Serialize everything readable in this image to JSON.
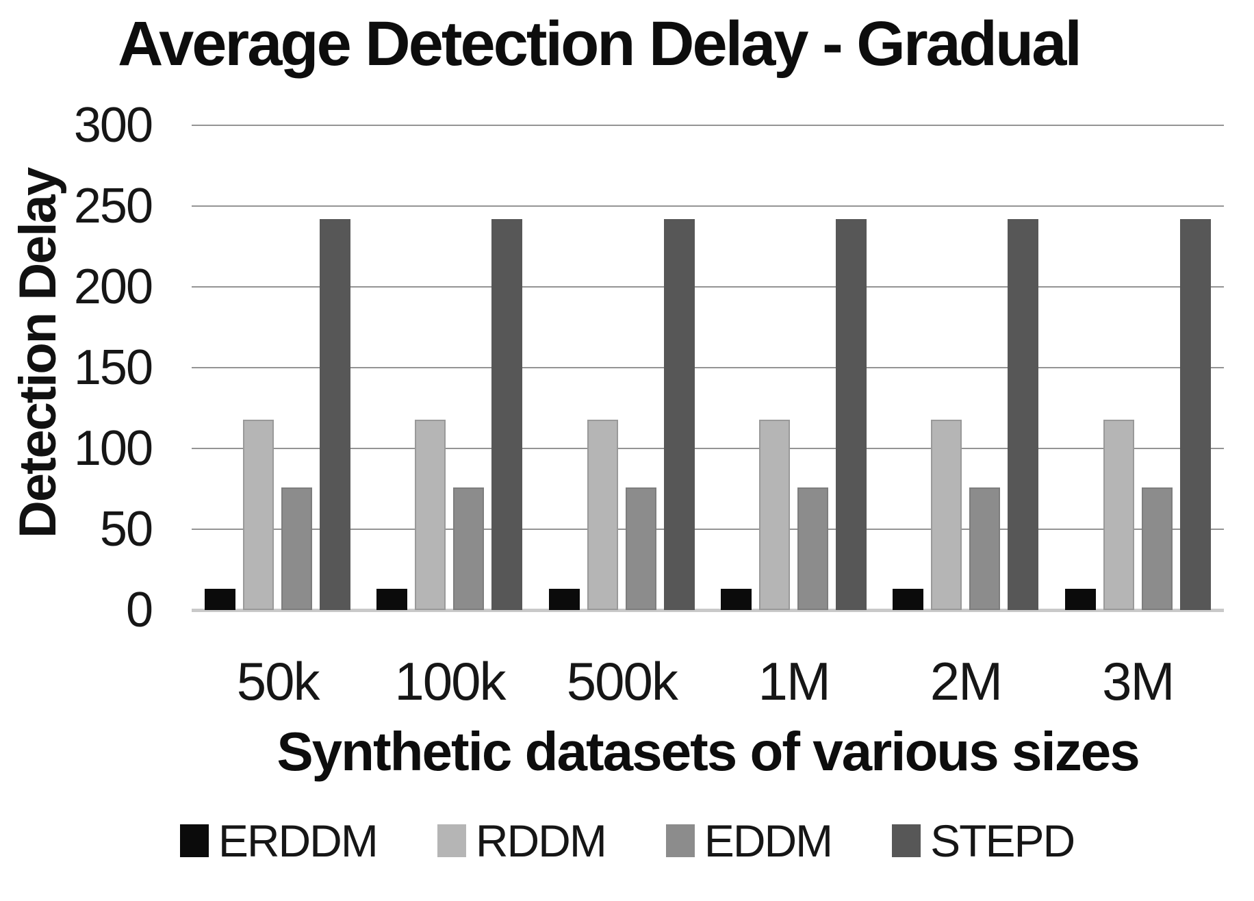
{
  "chart_data": {
    "type": "bar",
    "title": "Average Detection Delay - Gradual",
    "xlabel": "Synthetic datasets of various sizes",
    "ylabel": "Detection Delay",
    "categories": [
      "50k",
      "100k",
      "500k",
      "1M",
      "2M",
      "3M"
    ],
    "series": [
      {
        "name": "ERDDM",
        "color": "#0b0b0b",
        "border": "#0b0b0b",
        "values": [
          13,
          13,
          13,
          13,
          13,
          13
        ]
      },
      {
        "name": "RDDM",
        "color": "#b5b5b5",
        "border": "#999999",
        "values": [
          118,
          118,
          118,
          118,
          118,
          118
        ]
      },
      {
        "name": "EDDM",
        "color": "#8c8c8c",
        "border": "#7d7d7d",
        "values": [
          76,
          76,
          76,
          76,
          76,
          76
        ]
      },
      {
        "name": "STEPD",
        "color": "#575757",
        "border": "#575757",
        "values": [
          242,
          242,
          242,
          242,
          242,
          242
        ]
      }
    ],
    "ylim": [
      0,
      300
    ],
    "yticks": [
      0,
      50,
      100,
      150,
      200,
      250,
      300
    ],
    "grid": "horizontal",
    "legend_position": "bottom",
    "colors": {
      "gridline": "#949494",
      "baseline": "#c9c9c9",
      "text": "#111111",
      "background": "#ffffff"
    }
  }
}
